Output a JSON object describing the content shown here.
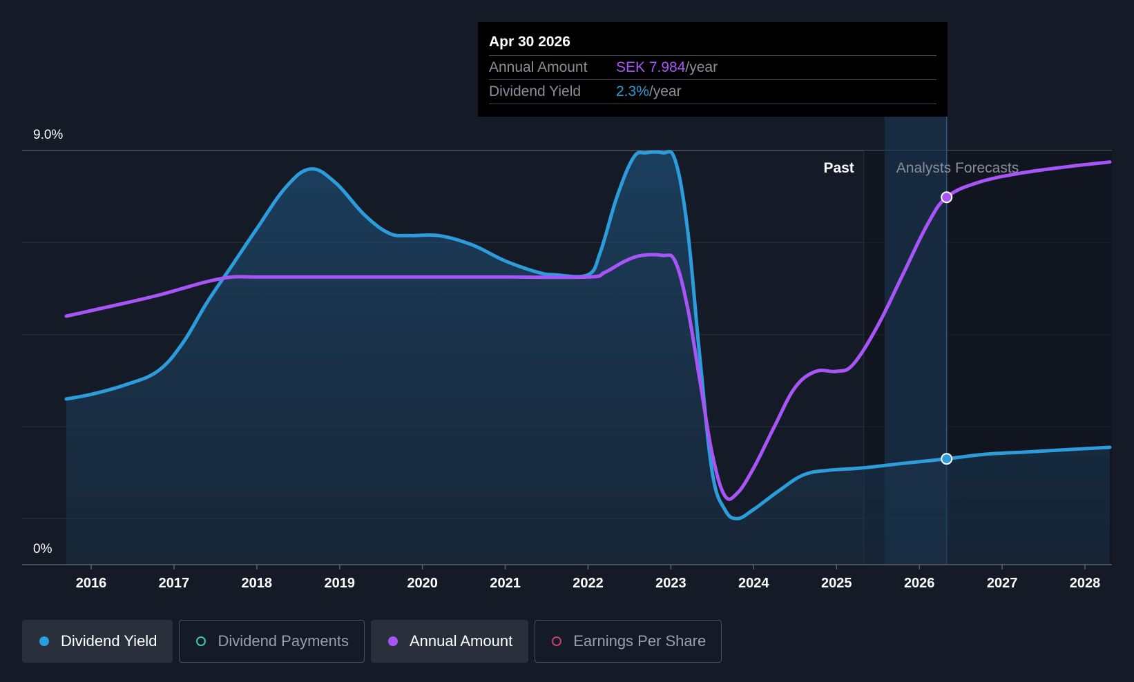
{
  "tooltip": {
    "date": "Apr 30 2026",
    "rows": [
      {
        "label": "Annual Amount",
        "value": "SEK 7.984",
        "unit": "/year",
        "color": "#a855f7"
      },
      {
        "label": "Dividend Yield",
        "value": "2.3%",
        "unit": "/year",
        "color": "#2d9cdb"
      }
    ]
  },
  "legend": [
    {
      "label": "Dividend Yield",
      "active": true,
      "filled": true,
      "color": "#2d9cdb"
    },
    {
      "label": "Dividend Payments",
      "active": false,
      "filled": false,
      "color": "#3ec6b8"
    },
    {
      "label": "Annual Amount",
      "active": true,
      "filled": true,
      "color": "#a855f7"
    },
    {
      "label": "Earnings Per Share",
      "active": false,
      "filled": false,
      "color": "#c4406e"
    }
  ],
  "chart_data": {
    "type": "line",
    "title": "",
    "xlabel": "",
    "ylabel": "",
    "xlim": [
      2015.4,
      2028.3
    ],
    "ylim": [
      0,
      9.0
    ],
    "y_tick_labels": [
      "9.0%",
      "0%"
    ],
    "x_ticks": [
      2016,
      2017,
      2018,
      2019,
      2020,
      2021,
      2022,
      2023,
      2024,
      2025,
      2026,
      2027,
      2028
    ],
    "grid": true,
    "past_label": "Past",
    "forecast_label": "Analysts Forecasts",
    "past_boundary_x": 2025.33,
    "highlight_x": 2026.33,
    "series": [
      {
        "name": "Dividend Yield",
        "unit": "%",
        "color": "#2d9cdb",
        "area": true,
        "marker_x": 2026.33,
        "marker_y": 2.3,
        "points": [
          [
            2015.7,
            3.6
          ],
          [
            2016.0,
            3.7
          ],
          [
            2016.4,
            3.9
          ],
          [
            2016.8,
            4.2
          ],
          [
            2017.1,
            4.8
          ],
          [
            2017.4,
            5.7
          ],
          [
            2017.7,
            6.5
          ],
          [
            2018.0,
            7.3
          ],
          [
            2018.35,
            8.2
          ],
          [
            2018.65,
            8.6
          ],
          [
            2018.95,
            8.3
          ],
          [
            2019.3,
            7.6
          ],
          [
            2019.6,
            7.2
          ],
          [
            2019.85,
            7.15
          ],
          [
            2020.2,
            7.15
          ],
          [
            2020.6,
            6.95
          ],
          [
            2021.0,
            6.6
          ],
          [
            2021.4,
            6.35
          ],
          [
            2021.6,
            6.3
          ],
          [
            2022.0,
            6.3
          ],
          [
            2022.15,
            6.8
          ],
          [
            2022.35,
            8.0
          ],
          [
            2022.55,
            8.85
          ],
          [
            2022.7,
            8.95
          ],
          [
            2022.9,
            8.95
          ],
          [
            2023.05,
            8.8
          ],
          [
            2023.2,
            7.3
          ],
          [
            2023.35,
            4.5
          ],
          [
            2023.5,
            2.0
          ],
          [
            2023.65,
            1.2
          ],
          [
            2023.8,
            1.0
          ],
          [
            2024.0,
            1.2
          ],
          [
            2024.3,
            1.6
          ],
          [
            2024.6,
            1.95
          ],
          [
            2024.9,
            2.05
          ],
          [
            2025.3,
            2.1
          ],
          [
            2025.8,
            2.2
          ],
          [
            2026.33,
            2.3
          ],
          [
            2026.8,
            2.4
          ],
          [
            2027.3,
            2.45
          ],
          [
            2027.8,
            2.5
          ],
          [
            2028.3,
            2.55
          ]
        ]
      },
      {
        "name": "Annual Amount",
        "unit": "SEK",
        "color": "#a855f7",
        "area": false,
        "marker_x": 2026.33,
        "marker_y": 7.984,
        "points": [
          [
            2015.7,
            5.4
          ],
          [
            2016.0,
            5.52
          ],
          [
            2016.4,
            5.68
          ],
          [
            2016.8,
            5.85
          ],
          [
            2017.1,
            6.0
          ],
          [
            2017.4,
            6.15
          ],
          [
            2017.7,
            6.25
          ],
          [
            2018.0,
            6.25
          ],
          [
            2019.0,
            6.25
          ],
          [
            2020.0,
            6.25
          ],
          [
            2021.0,
            6.25
          ],
          [
            2022.0,
            6.25
          ],
          [
            2022.2,
            6.35
          ],
          [
            2022.45,
            6.6
          ],
          [
            2022.65,
            6.72
          ],
          [
            2022.9,
            6.72
          ],
          [
            2023.05,
            6.6
          ],
          [
            2023.2,
            5.6
          ],
          [
            2023.35,
            4.0
          ],
          [
            2023.5,
            2.4
          ],
          [
            2023.65,
            1.5
          ],
          [
            2023.8,
            1.55
          ],
          [
            2024.0,
            2.1
          ],
          [
            2024.25,
            3.0
          ],
          [
            2024.5,
            3.85
          ],
          [
            2024.75,
            4.2
          ],
          [
            2025.0,
            4.2
          ],
          [
            2025.2,
            4.35
          ],
          [
            2025.5,
            5.2
          ],
          [
            2025.8,
            6.3
          ],
          [
            2026.1,
            7.4
          ],
          [
            2026.33,
            7.984
          ],
          [
            2026.7,
            8.3
          ],
          [
            2027.2,
            8.5
          ],
          [
            2027.8,
            8.65
          ],
          [
            2028.3,
            8.75
          ]
        ]
      }
    ]
  }
}
